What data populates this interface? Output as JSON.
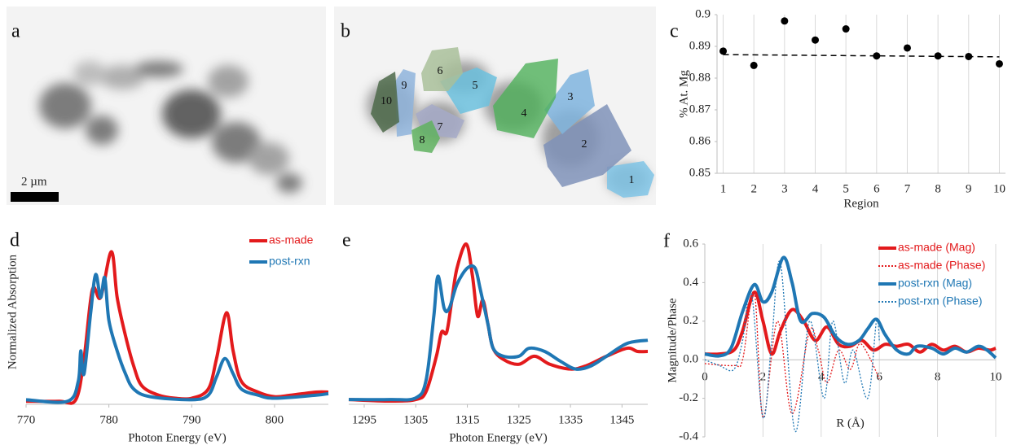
{
  "images": [
    {
      "label": "a",
      "scale_bar": "2 µm"
    },
    {
      "label": "b",
      "regions": [
        "1",
        "2",
        "3",
        "4",
        "5",
        "6",
        "7",
        "8",
        "9",
        "10"
      ]
    }
  ],
  "chart_data": [
    {
      "type": "scatter",
      "panel_label": "c",
      "xlabel": "Region",
      "ylabel": "% At. Mg",
      "x": [
        1,
        2,
        3,
        4,
        5,
        6,
        7,
        8,
        9,
        10
      ],
      "values": [
        0.8885,
        0.884,
        0.898,
        0.892,
        0.8955,
        0.887,
        0.8895,
        0.887,
        0.8868,
        0.8845
      ],
      "color": "#000000",
      "trend_line": {
        "x": [
          1,
          10
        ],
        "y": [
          0.8874,
          0.8867
        ]
      },
      "xlim": [
        0.8,
        10.2
      ],
      "ylim": [
        0.85,
        0.9
      ],
      "xticks": [
        1,
        2,
        3,
        4,
        5,
        6,
        7,
        8,
        9,
        10
      ],
      "yticks": [
        0.85,
        0.86,
        0.87,
        0.88,
        0.89,
        0.9
      ],
      "grid": true
    },
    {
      "type": "line",
      "panel_label": "d",
      "xlabel": "Photon Energy (eV)",
      "ylabel": "Normalized Absorption",
      "xlim": [
        770,
        806.5
      ],
      "ylim": [
        0,
        1.05
      ],
      "xticks": [
        770,
        780,
        790,
        800
      ],
      "legend": "upper right",
      "series": [
        {
          "name": "as-made",
          "color": "#e31a1c",
          "x": [
            770,
            774,
            776,
            777,
            778,
            779,
            780.3,
            781,
            782,
            783,
            784,
            786,
            788,
            790,
            792,
            793,
            794.2,
            795,
            796,
            798,
            800,
            802,
            805,
            806.5
          ],
          "values": [
            0.02,
            0.02,
            0.03,
            0.3,
            0.75,
            0.7,
            1.0,
            0.7,
            0.45,
            0.25,
            0.12,
            0.06,
            0.04,
            0.04,
            0.1,
            0.3,
            0.6,
            0.35,
            0.15,
            0.08,
            0.05,
            0.06,
            0.08,
            0.08
          ]
        },
        {
          "name": "post-rxn",
          "color": "#1f77b4",
          "x": [
            770,
            775,
            776.3,
            776.6,
            777,
            777.8,
            778.4,
            779,
            779.5,
            780,
            781,
            782,
            783,
            785,
            790,
            792,
            793,
            794,
            795,
            796,
            798,
            800,
            805,
            806.5
          ],
          "values": [
            0.03,
            0.02,
            0.15,
            0.35,
            0.2,
            0.6,
            0.85,
            0.7,
            0.83,
            0.55,
            0.35,
            0.2,
            0.1,
            0.05,
            0.03,
            0.06,
            0.18,
            0.3,
            0.2,
            0.1,
            0.06,
            0.04,
            0.06,
            0.07
          ]
        }
      ]
    },
    {
      "type": "line",
      "panel_label": "e",
      "xlabel": "Photon Energy (eV)",
      "xlim": [
        1292,
        1350
      ],
      "ylim": [
        0,
        1.0
      ],
      "xticks": [
        1295,
        1305,
        1315,
        1325,
        1335,
        1345
      ],
      "series": [
        {
          "name": "as-made",
          "color": "#e31a1c",
          "x": [
            1292,
            1300,
            1305,
            1307,
            1309,
            1310,
            1311,
            1312,
            1313,
            1314.8,
            1316,
            1317,
            1318,
            1319,
            1320,
            1322,
            1325,
            1328,
            1331,
            1335,
            1338,
            1342,
            1346,
            1348,
            1350
          ],
          "values": [
            0.03,
            0.02,
            0.03,
            0.08,
            0.3,
            0.45,
            0.45,
            0.65,
            0.85,
            1.0,
            0.8,
            0.55,
            0.65,
            0.5,
            0.35,
            0.28,
            0.25,
            0.3,
            0.25,
            0.22,
            0.24,
            0.3,
            0.35,
            0.33,
            0.33
          ]
        },
        {
          "name": "post-rxn",
          "color": "#1f77b4",
          "x": [
            1292,
            1300,
            1305,
            1307,
            1308.5,
            1309.3,
            1310.5,
            1311.5,
            1313,
            1315,
            1316.5,
            1317.5,
            1319,
            1320,
            1322,
            1325,
            1327,
            1330,
            1333,
            1336,
            1339,
            1342,
            1346,
            1350
          ],
          "values": [
            0.03,
            0.03,
            0.04,
            0.15,
            0.55,
            0.8,
            0.6,
            0.6,
            0.75,
            0.85,
            0.85,
            0.72,
            0.5,
            0.35,
            0.3,
            0.3,
            0.35,
            0.33,
            0.27,
            0.22,
            0.24,
            0.3,
            0.38,
            0.4
          ]
        }
      ]
    },
    {
      "type": "line",
      "panel_label": "f",
      "xlabel": "R (Å)",
      "ylabel": "Magnitude/Phase",
      "xlim": [
        0,
        10
      ],
      "ylim": [
        -0.4,
        0.6
      ],
      "xticks": [
        0,
        2,
        4,
        6,
        8,
        10
      ],
      "yticks": [
        -0.4,
        -0.2,
        {
          "value": 0,
          "label": "0.0"
        },
        0.2,
        0.4,
        0.6
      ],
      "grid": true,
      "legend": "upper right",
      "series": [
        {
          "name": "as-made (Mag)",
          "color": "#e31a1c",
          "dashed": false,
          "x": [
            0,
            0.5,
            1.0,
            1.3,
            1.7,
            2.0,
            2.3,
            2.6,
            3.0,
            3.4,
            3.8,
            4.2,
            4.6,
            5.0,
            5.4,
            5.8,
            6.2,
            6.6,
            7.0,
            7.4,
            7.8,
            8.2,
            8.6,
            9.0,
            9.4,
            9.8,
            10
          ],
          "values": [
            0.03,
            0.03,
            0.05,
            0.15,
            0.35,
            0.2,
            0.03,
            0.15,
            0.26,
            0.2,
            0.1,
            0.17,
            0.08,
            0.07,
            0.1,
            0.05,
            0.08,
            0.07,
            0.08,
            0.04,
            0.08,
            0.05,
            0.07,
            0.04,
            0.06,
            0.05,
            0.06
          ]
        },
        {
          "name": "as-made (Phase)",
          "color": "#e31a1c",
          "dashed": true,
          "x": [
            0,
            1,
            1.3,
            1.7,
            2,
            2.5,
            3.0,
            3.6,
            3.9,
            4.2,
            4.6,
            5.0,
            5.3,
            5.6,
            6.0
          ],
          "values": [
            -0.02,
            -0.03,
            0.0,
            0.35,
            -0.3,
            0.2,
            -0.28,
            0.15,
            0.05,
            -0.12,
            0.05,
            -0.05,
            0.08,
            0.03,
            -0.1
          ]
        },
        {
          "name": "post-rxn (Mag)",
          "color": "#1f77b4",
          "dashed": false,
          "x": [
            0,
            0.5,
            0.9,
            1.3,
            1.7,
            2.0,
            2.3,
            2.7,
            3.0,
            3.3,
            3.7,
            4.1,
            4.5,
            4.9,
            5.3,
            5.6,
            5.9,
            6.2,
            6.6,
            7.0,
            7.3,
            7.8,
            8.2,
            8.6,
            9.0,
            9.4,
            9.7,
            10
          ],
          "values": [
            0.03,
            0.02,
            0.06,
            0.25,
            0.39,
            0.3,
            0.35,
            0.53,
            0.4,
            0.2,
            0.24,
            0.22,
            0.12,
            0.08,
            0.1,
            0.16,
            0.21,
            0.13,
            0.05,
            0.03,
            0.07,
            0.06,
            0.03,
            0.06,
            0.04,
            0.07,
            0.05,
            0.01
          ]
        },
        {
          "name": "post-rxn (Phase)",
          "color": "#1f77b4",
          "dashed": true,
          "x": [
            0,
            0.5,
            1,
            1.3,
            1.6,
            2,
            2.3,
            2.6,
            3.1,
            3.6,
            4.1,
            4.4,
            4.8,
            5.1,
            5.6,
            5.9,
            6.0
          ],
          "values": [
            0.0,
            -0.03,
            -0.05,
            0.1,
            0.35,
            -0.3,
            0.1,
            0.5,
            -0.37,
            0.2,
            -0.2,
            0.2,
            -0.12,
            0.05,
            -0.2,
            0.2,
            0.1
          ]
        }
      ]
    }
  ]
}
